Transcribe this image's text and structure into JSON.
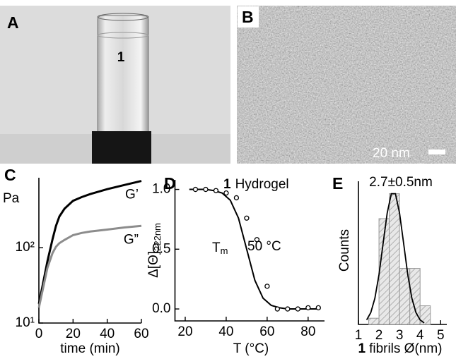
{
  "panels": {
    "A": {
      "label": "A",
      "vial_label": "1"
    },
    "B": {
      "label": "B",
      "scale_bar": "20 nm"
    }
  },
  "chart_data": [
    {
      "type": "line",
      "panel": "C",
      "ylabel": "Pa",
      "xlabel": "time (min)",
      "log_y": true,
      "x": [
        0,
        2,
        5,
        8,
        10,
        12,
        15,
        20,
        25,
        30,
        40,
        50,
        60
      ],
      "series": [
        {
          "name": "G’",
          "color": "#000000",
          "values": [
            18,
            30,
            66,
            130,
            195,
            260,
            330,
            420,
            470,
            515,
            600,
            680,
            770
          ]
        },
        {
          "name": "G”",
          "color": "#8c8c8c",
          "values": [
            16,
            26,
            54,
            85,
            103,
            115,
            127,
            147,
            157,
            164,
            174,
            186,
            195
          ]
        }
      ],
      "xlim": [
        0,
        60
      ],
      "xticks": [
        0,
        20,
        40,
        60
      ],
      "ylim": [
        10,
        850
      ],
      "yticks": [
        {
          "value": 10,
          "label": "10¹"
        },
        {
          "value": 100,
          "label": "10²"
        }
      ]
    },
    {
      "type": "scatter",
      "panel": "D",
      "title": {
        "bold": "1",
        "text": "Hydrogel"
      },
      "annotation": {
        "symbol": "T",
        "subscript": "m",
        "value": "50 °C"
      },
      "ylabel": {
        "text": "Δ[Θ]",
        "subscript": "222nm"
      },
      "xlabel": "T (°C)",
      "x": [
        25,
        30,
        35,
        40,
        45,
        50,
        55,
        60,
        65,
        70,
        75,
        80,
        85
      ],
      "values": [
        1.0,
        1.0,
        0.99,
        0.97,
        0.93,
        0.76,
        0.58,
        0.19,
        0.0,
        0.0,
        0.0,
        0.01,
        0.01
      ],
      "fit": {
        "x": [
          22,
          26,
          30,
          34,
          38,
          42,
          46,
          50,
          54,
          58,
          62,
          66,
          70,
          74,
          78,
          82,
          86
        ],
        "values": [
          1.0,
          1.0,
          1.0,
          0.99,
          0.97,
          0.91,
          0.76,
          0.5,
          0.24,
          0.09,
          0.03,
          0.01,
          0,
          0,
          0,
          0,
          0
        ]
      },
      "xlim": [
        15,
        88
      ],
      "xticks": [
        20,
        40,
        60,
        80
      ],
      "ylim": [
        -0.1,
        1.08
      ],
      "yticks": [
        {
          "value": 0,
          "label": "0.0"
        },
        0.5,
        {
          "value": 1,
          "label": "1.0"
        }
      ]
    },
    {
      "type": "histogram",
      "panel": "E",
      "annotation": "2.7±0.5nm",
      "ylabel": "Counts",
      "xlabel": {
        "bold": "1",
        "text": "fibrils Ø(nm)"
      },
      "bins": [
        1.5,
        2,
        2.5,
        3,
        3.5,
        4,
        4.5
      ],
      "counts": [
        1,
        17,
        21,
        9,
        9,
        3
      ],
      "fit": {
        "x": [
          1.4,
          1.6,
          1.8,
          2.0,
          2.2,
          2.4,
          2.6,
          2.8,
          3.0,
          3.2,
          3.4,
          3.6,
          3.8,
          4.0,
          4.2
        ],
        "values": [
          0.73,
          1.9,
          4.2,
          8.0,
          13.0,
          17.9,
          21.0,
          21.0,
          17.9,
          13.0,
          8.0,
          4.2,
          1.9,
          0.73,
          0.24
        ]
      },
      "xlim": [
        1,
        5.3
      ],
      "xticks": [
        1,
        2,
        3,
        4,
        5
      ],
      "ylim": [
        0,
        23
      ]
    }
  ]
}
